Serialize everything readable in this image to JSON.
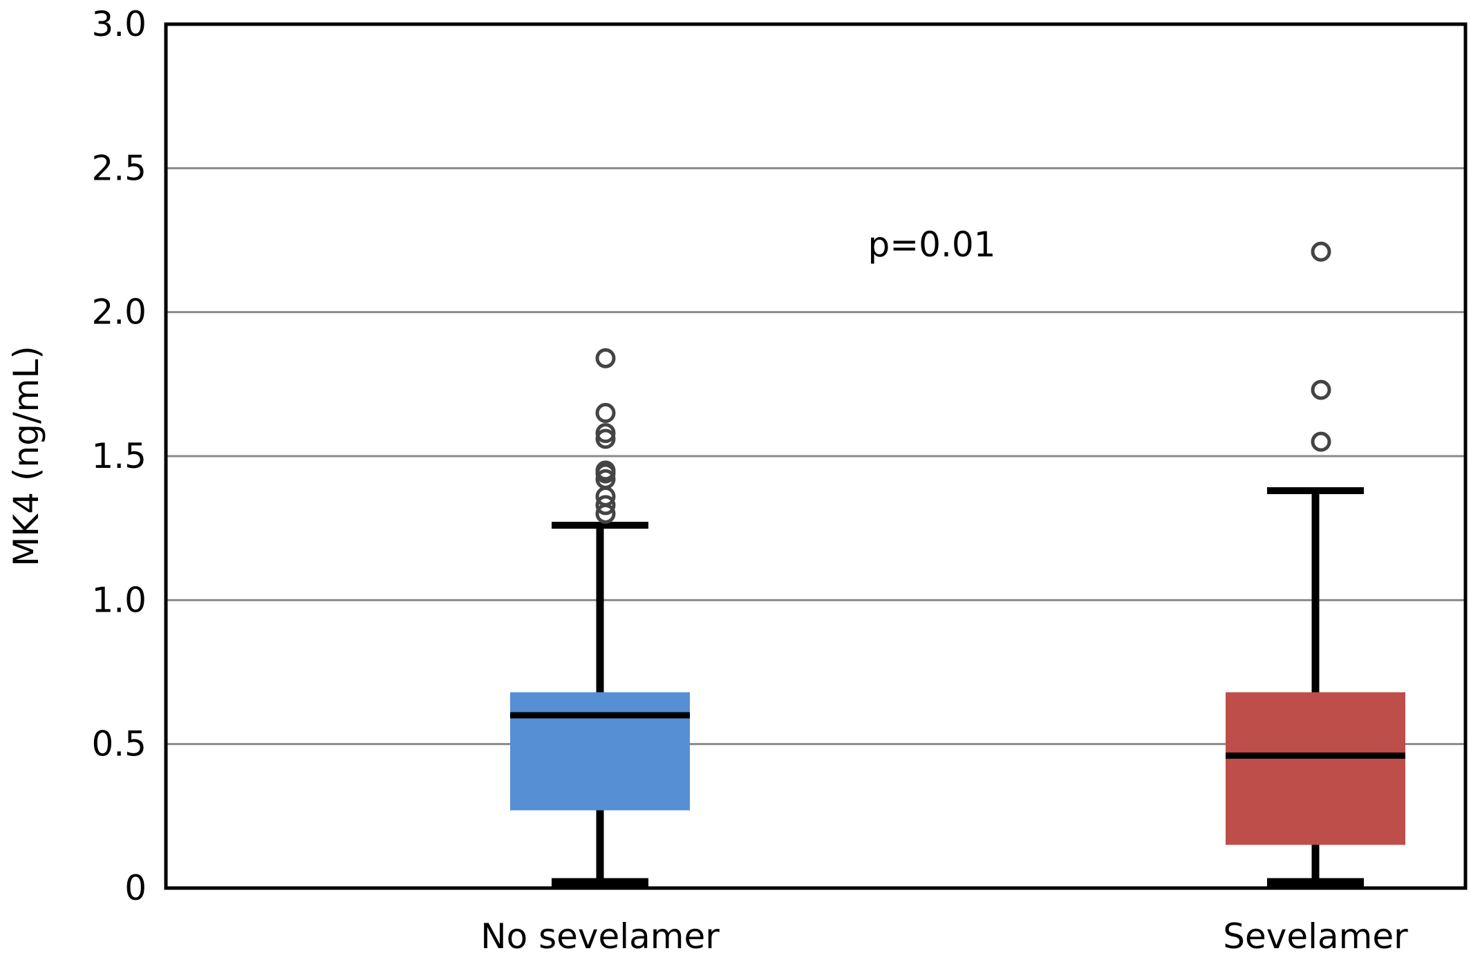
{
  "chart_data": {
    "type": "box",
    "title": "",
    "xlabel": "",
    "ylabel": "MK4 (ng/mL)",
    "ylim": [
      0,
      3.0
    ],
    "yticks": [
      0,
      0.5,
      1.0,
      1.5,
      2.0,
      2.5,
      3.0
    ],
    "ytick_labels": [
      "0",
      "0.5",
      "1.0",
      "1.5",
      "2.0",
      "2.5",
      "3.0"
    ],
    "grid": true,
    "annotation": "p=0.01",
    "categories": [
      "No sevelamer",
      "Sevelamer"
    ],
    "boxes": [
      {
        "category": "No sevelamer",
        "color": "#568fd4",
        "whisker_low": 0.02,
        "q1": 0.27,
        "median": 0.6,
        "q3": 0.68,
        "whisker_high": 1.26,
        "outliers": [
          1.3,
          1.33,
          1.36,
          1.42,
          1.44,
          1.45,
          1.56,
          1.58,
          1.65,
          1.84
        ]
      },
      {
        "category": "Sevelamer",
        "color": "#be4e49",
        "whisker_low": 0.02,
        "q1": 0.15,
        "median": 0.46,
        "q3": 0.68,
        "whisker_high": 1.38,
        "outliers": [
          1.55,
          1.73,
          2.21
        ]
      }
    ]
  }
}
